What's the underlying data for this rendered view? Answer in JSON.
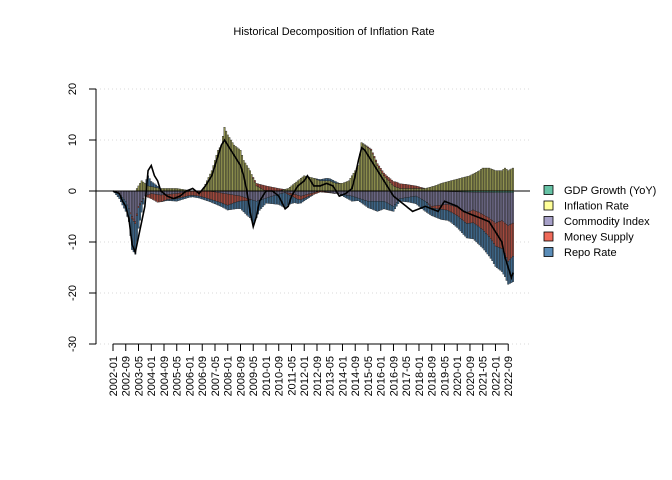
{
  "chart_data": {
    "type": "bar",
    "stacked": true,
    "title": "Historical Decomposition of Inflation Rate",
    "xlabel": "",
    "ylabel": "",
    "ylim": [
      -30,
      20
    ],
    "yticks": [
      -30,
      -20,
      -10,
      0,
      10,
      20
    ],
    "grid": true,
    "legend_position": "right",
    "x_start": "2002-01",
    "x_end": "2022-12",
    "x_tick_labels": [
      "2002-01",
      "2002-09",
      "2003-05",
      "2004-01",
      "2004-09",
      "2005-05",
      "2006-01",
      "2006-09",
      "2007-05",
      "2008-01",
      "2008-09",
      "2009-05",
      "2010-01",
      "2010-09",
      "2011-05",
      "2012-01",
      "2012-09",
      "2013-05",
      "2014-01",
      "2014-09",
      "2015-05",
      "2016-01",
      "2016-09",
      "2017-05",
      "2018-01",
      "2018-09",
      "2019-05",
      "2020-01",
      "2020-09",
      "2021-05",
      "2022-01",
      "2022-09"
    ],
    "series": [
      {
        "name": "GDP Growth (YoY)",
        "color": "#66c2a5"
      },
      {
        "name": "Inflation Rate",
        "color": "#ffff99"
      },
      {
        "name": "Commodity Index",
        "color": "#a6a0c8"
      },
      {
        "name": "Money Supply",
        "color": "#ef6a5a"
      },
      {
        "name": "Repo Rate",
        "color": "#5b8db8"
      }
    ],
    "keypoints": {
      "commodity": [
        [
          0,
          0
        ],
        [
          4,
          -0.5
        ],
        [
          8,
          -2
        ],
        [
          12,
          -5
        ],
        [
          14,
          -6
        ],
        [
          16,
          -3
        ],
        [
          20,
          -1
        ],
        [
          24,
          -0.5
        ],
        [
          30,
          -0.8
        ],
        [
          40,
          -0.5
        ],
        [
          50,
          0
        ],
        [
          60,
          0
        ],
        [
          70,
          -0.5
        ],
        [
          80,
          -1
        ],
        [
          90,
          -2
        ],
        [
          100,
          -1
        ],
        [
          108,
          -0.3
        ],
        [
          112,
          -0.5
        ],
        [
          118,
          -1
        ],
        [
          124,
          -0.5
        ],
        [
          130,
          0
        ],
        [
          140,
          -0.5
        ],
        [
          150,
          -1
        ],
        [
          160,
          -2
        ],
        [
          170,
          -2
        ],
        [
          176,
          -3
        ],
        [
          180,
          -1.5
        ],
        [
          190,
          -1
        ],
        [
          196,
          -2
        ],
        [
          200,
          -3
        ],
        [
          210,
          -2.5
        ],
        [
          216,
          -3
        ],
        [
          222,
          -4
        ],
        [
          226,
          -3.5
        ],
        [
          230,
          -4
        ],
        [
          236,
          -5
        ],
        [
          240,
          -6
        ],
        [
          244,
          -5.5
        ],
        [
          248,
          -6.5
        ],
        [
          251,
          -6
        ]
      ],
      "money": [
        [
          0,
          0
        ],
        [
          10,
          0
        ],
        [
          12,
          -0.5
        ],
        [
          16,
          -0.3
        ],
        [
          20,
          0
        ],
        [
          24,
          -1
        ],
        [
          28,
          -1.5
        ],
        [
          34,
          -1
        ],
        [
          40,
          -1
        ],
        [
          48,
          -0.8
        ],
        [
          54,
          -1
        ],
        [
          60,
          -1.5
        ],
        [
          66,
          -1.8
        ],
        [
          72,
          -2.2
        ],
        [
          78,
          -1.2
        ],
        [
          84,
          -0.5
        ],
        [
          90,
          0.5
        ],
        [
          96,
          1
        ],
        [
          104,
          0.5
        ],
        [
          110,
          -0.3
        ],
        [
          116,
          -0.8
        ],
        [
          122,
          -0.5
        ],
        [
          130,
          -0.2
        ],
        [
          140,
          0
        ],
        [
          150,
          0
        ],
        [
          156,
          0
        ],
        [
          164,
          0.3
        ],
        [
          172,
          0.6
        ],
        [
          178,
          1
        ],
        [
          184,
          0.8
        ],
        [
          190,
          0.5
        ],
        [
          196,
          0
        ],
        [
          202,
          -0.5
        ],
        [
          208,
          -1
        ],
        [
          214,
          -1.5
        ],
        [
          220,
          -2
        ],
        [
          226,
          -2.5
        ],
        [
          232,
          -3
        ],
        [
          238,
          -4
        ],
        [
          242,
          -5
        ],
        [
          246,
          -6
        ],
        [
          248,
          -7
        ],
        [
          251,
          -6.5
        ]
      ],
      "repo": [
        [
          0,
          0
        ],
        [
          6,
          -1.5
        ],
        [
          10,
          -2.5
        ],
        [
          12,
          -6
        ],
        [
          14,
          -6
        ],
        [
          16,
          -4
        ],
        [
          18,
          -2
        ],
        [
          22,
          2
        ],
        [
          24,
          1
        ],
        [
          30,
          0
        ],
        [
          40,
          -0.5
        ],
        [
          50,
          -0.3
        ],
        [
          60,
          -0.5
        ],
        [
          70,
          -0.8
        ],
        [
          80,
          -1.5
        ],
        [
          86,
          -3.5
        ],
        [
          88,
          -4.5
        ],
        [
          92,
          -2
        ],
        [
          96,
          -1
        ],
        [
          100,
          -1.5
        ],
        [
          104,
          -2
        ],
        [
          108,
          -3
        ],
        [
          110,
          -2
        ],
        [
          114,
          -1
        ],
        [
          120,
          -0.5
        ],
        [
          126,
          0
        ],
        [
          134,
          0.5
        ],
        [
          140,
          0.3
        ],
        [
          146,
          -0.5
        ],
        [
          150,
          -1
        ],
        [
          154,
          -0.5
        ],
        [
          158,
          -1
        ],
        [
          162,
          -1.5
        ],
        [
          166,
          -2
        ],
        [
          170,
          -1.5
        ],
        [
          176,
          -1
        ],
        [
          180,
          -0.5
        ],
        [
          186,
          -1
        ],
        [
          190,
          -1.5
        ],
        [
          196,
          -2
        ],
        [
          200,
          -1.5
        ],
        [
          206,
          -2
        ],
        [
          212,
          -2
        ],
        [
          218,
          -2.5
        ],
        [
          224,
          -3
        ],
        [
          230,
          -3.5
        ],
        [
          236,
          -3.8
        ],
        [
          240,
          -4
        ],
        [
          244,
          -4.5
        ],
        [
          248,
          -4.5
        ],
        [
          251,
          -5
        ]
      ],
      "inflation": [
        [
          0,
          0
        ],
        [
          4,
          0
        ],
        [
          10,
          0
        ],
        [
          14,
          0
        ],
        [
          16,
          1
        ],
        [
          18,
          2
        ],
        [
          22,
          1
        ],
        [
          30,
          0.5
        ],
        [
          40,
          0.5
        ],
        [
          50,
          0
        ],
        [
          56,
          0
        ],
        [
          62,
          4
        ],
        [
          66,
          8
        ],
        [
          68,
          9
        ],
        [
          70,
          12.5
        ],
        [
          72,
          11
        ],
        [
          76,
          9
        ],
        [
          80,
          8
        ],
        [
          82,
          6
        ],
        [
          86,
          4
        ],
        [
          90,
          1
        ],
        [
          96,
          0
        ],
        [
          104,
          0
        ],
        [
          110,
          0.5
        ],
        [
          116,
          2
        ],
        [
          120,
          3
        ],
        [
          126,
          2.5
        ],
        [
          130,
          2
        ],
        [
          136,
          2
        ],
        [
          140,
          1.5
        ],
        [
          144,
          1.5
        ],
        [
          148,
          2
        ],
        [
          154,
          5
        ],
        [
          156,
          9.5
        ],
        [
          158,
          9
        ],
        [
          162,
          8
        ],
        [
          166,
          5
        ],
        [
          170,
          3
        ],
        [
          176,
          1
        ],
        [
          180,
          0.5
        ],
        [
          190,
          0.5
        ],
        [
          196,
          0.5
        ],
        [
          202,
          1
        ],
        [
          206,
          1.5
        ],
        [
          212,
          2
        ],
        [
          218,
          2.5
        ],
        [
          224,
          3
        ],
        [
          230,
          4
        ],
        [
          232,
          4.5
        ],
        [
          236,
          4.5
        ],
        [
          240,
          4
        ],
        [
          244,
          4
        ],
        [
          246,
          4.5
        ],
        [
          248,
          4
        ],
        [
          251,
          4.5
        ]
      ],
      "gdp": [
        [
          0,
          0
        ],
        [
          40,
          0
        ],
        [
          80,
          0
        ],
        [
          120,
          0
        ],
        [
          160,
          0
        ],
        [
          200,
          0
        ],
        [
          220,
          -0.2
        ],
        [
          240,
          -0.3
        ],
        [
          251,
          -0.3
        ]
      ],
      "line": [
        [
          0,
          0
        ],
        [
          4,
          -0.5
        ],
        [
          6,
          -2
        ],
        [
          8,
          -3
        ],
        [
          10,
          -5.5
        ],
        [
          12,
          -10.5
        ],
        [
          14,
          -12
        ],
        [
          16,
          -9
        ],
        [
          18,
          -6
        ],
        [
          20,
          -3
        ],
        [
          22,
          4
        ],
        [
          24,
          5
        ],
        [
          26,
          3
        ],
        [
          28,
          2
        ],
        [
          30,
          0
        ],
        [
          34,
          -1
        ],
        [
          38,
          -1.5
        ],
        [
          42,
          -1
        ],
        [
          46,
          0
        ],
        [
          50,
          0.5
        ],
        [
          54,
          -0.5
        ],
        [
          58,
          1
        ],
        [
          62,
          3
        ],
        [
          64,
          5
        ],
        [
          66,
          7
        ],
        [
          68,
          9
        ],
        [
          70,
          10
        ],
        [
          72,
          9
        ],
        [
          76,
          7
        ],
        [
          80,
          5
        ],
        [
          82,
          3
        ],
        [
          84,
          0
        ],
        [
          86,
          -4
        ],
        [
          88,
          -7
        ],
        [
          90,
          -5
        ],
        [
          92,
          -2
        ],
        [
          96,
          0
        ],
        [
          100,
          0
        ],
        [
          104,
          -1
        ],
        [
          108,
          -3.5
        ],
        [
          110,
          -3
        ],
        [
          112,
          -1
        ],
        [
          116,
          1
        ],
        [
          120,
          2
        ],
        [
          122,
          3
        ],
        [
          124,
          2
        ],
        [
          126,
          1
        ],
        [
          130,
          1
        ],
        [
          134,
          1.5
        ],
        [
          138,
          1
        ],
        [
          142,
          -1
        ],
        [
          146,
          -0.5
        ],
        [
          150,
          0.5
        ],
        [
          152,
          3
        ],
        [
          154,
          6
        ],
        [
          156,
          8.5
        ],
        [
          158,
          8
        ],
        [
          160,
          7
        ],
        [
          164,
          5
        ],
        [
          168,
          3
        ],
        [
          172,
          1
        ],
        [
          176,
          -1
        ],
        [
          180,
          -2
        ],
        [
          184,
          -3
        ],
        [
          188,
          -4
        ],
        [
          192,
          -3.5
        ],
        [
          196,
          -3
        ],
        [
          200,
          -3.5
        ],
        [
          204,
          -4
        ],
        [
          208,
          -2
        ],
        [
          212,
          -2.5
        ],
        [
          216,
          -3
        ],
        [
          220,
          -4
        ],
        [
          224,
          -4.5
        ],
        [
          228,
          -5
        ],
        [
          232,
          -5.5
        ],
        [
          236,
          -6
        ],
        [
          240,
          -8
        ],
        [
          244,
          -10
        ],
        [
          246,
          -13
        ],
        [
          248,
          -15
        ],
        [
          250,
          -17
        ],
        [
          251,
          -16
        ]
      ]
    }
  }
}
